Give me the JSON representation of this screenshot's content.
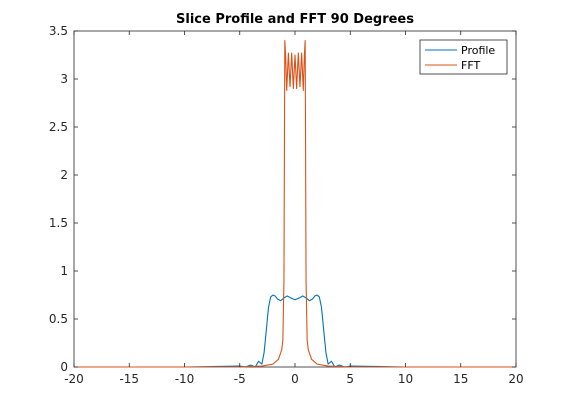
{
  "chart_data": {
    "type": "line",
    "title": "Slice Profile and FFT 90 Degrees",
    "xlabel": "",
    "ylabel": "",
    "xlim": [
      -20,
      20
    ],
    "ylim": [
      0,
      3.5
    ],
    "x_ticks": [
      -20,
      -15,
      -10,
      -5,
      0,
      5,
      10,
      15,
      20
    ],
    "x_tick_labels": [
      "-20",
      "-15",
      "-10",
      "-5",
      "0",
      "5",
      "10",
      "15",
      "20"
    ],
    "y_ticks": [
      0,
      0.5,
      1,
      1.5,
      2,
      2.5,
      3,
      3.5
    ],
    "y_tick_labels": [
      "0",
      "0.5",
      "1",
      "1.5",
      "2",
      "2.5",
      "3",
      "3.5"
    ],
    "grid": false,
    "legend_position": "top-right",
    "series": [
      {
        "name": "Profile",
        "color": "#0072BD",
        "x": [
          -20,
          -10,
          -5,
          -4.5,
          -4,
          -3.6,
          -3.3,
          -3.0,
          -2.8,
          -2.6,
          -2.4,
          -2.2,
          -2.0,
          -1.8,
          -1.6,
          -1.3,
          -1.0,
          -0.7,
          -0.4,
          0,
          0.4,
          0.7,
          1.0,
          1.3,
          1.6,
          1.8,
          2.0,
          2.2,
          2.4,
          2.6,
          2.8,
          3.0,
          3.3,
          3.6,
          4.0,
          4.5,
          5,
          10,
          20
        ],
        "y": [
          0,
          0,
          0.01,
          0.0,
          0.02,
          0.0,
          0.06,
          0.03,
          0.15,
          0.38,
          0.62,
          0.73,
          0.75,
          0.74,
          0.71,
          0.69,
          0.72,
          0.74,
          0.72,
          0.7,
          0.72,
          0.74,
          0.72,
          0.69,
          0.71,
          0.74,
          0.75,
          0.73,
          0.62,
          0.38,
          0.15,
          0.03,
          0.06,
          0.0,
          0.02,
          0.0,
          0.01,
          0,
          0
        ]
      },
      {
        "name": "FFT",
        "color": "#D95319",
        "x": [
          -20,
          -5,
          -3,
          -2,
          -1.5,
          -1.2,
          -1.1,
          -1.0,
          -0.95,
          -0.92,
          -0.85,
          -0.75,
          -0.6,
          -0.45,
          -0.3,
          -0.15,
          0,
          0.15,
          0.3,
          0.45,
          0.6,
          0.75,
          0.85,
          0.92,
          0.95,
          1.0,
          1.1,
          1.2,
          1.5,
          2,
          3,
          5,
          20
        ],
        "y": [
          0,
          0,
          0.01,
          0.03,
          0.08,
          0.18,
          0.28,
          0.9,
          2.5,
          3.4,
          3.25,
          2.88,
          3.27,
          2.92,
          3.27,
          2.9,
          3.25,
          2.9,
          3.27,
          2.92,
          3.27,
          2.88,
          3.25,
          3.4,
          2.5,
          0.9,
          0.28,
          0.18,
          0.08,
          0.03,
          0.01,
          0,
          0
        ]
      }
    ]
  }
}
